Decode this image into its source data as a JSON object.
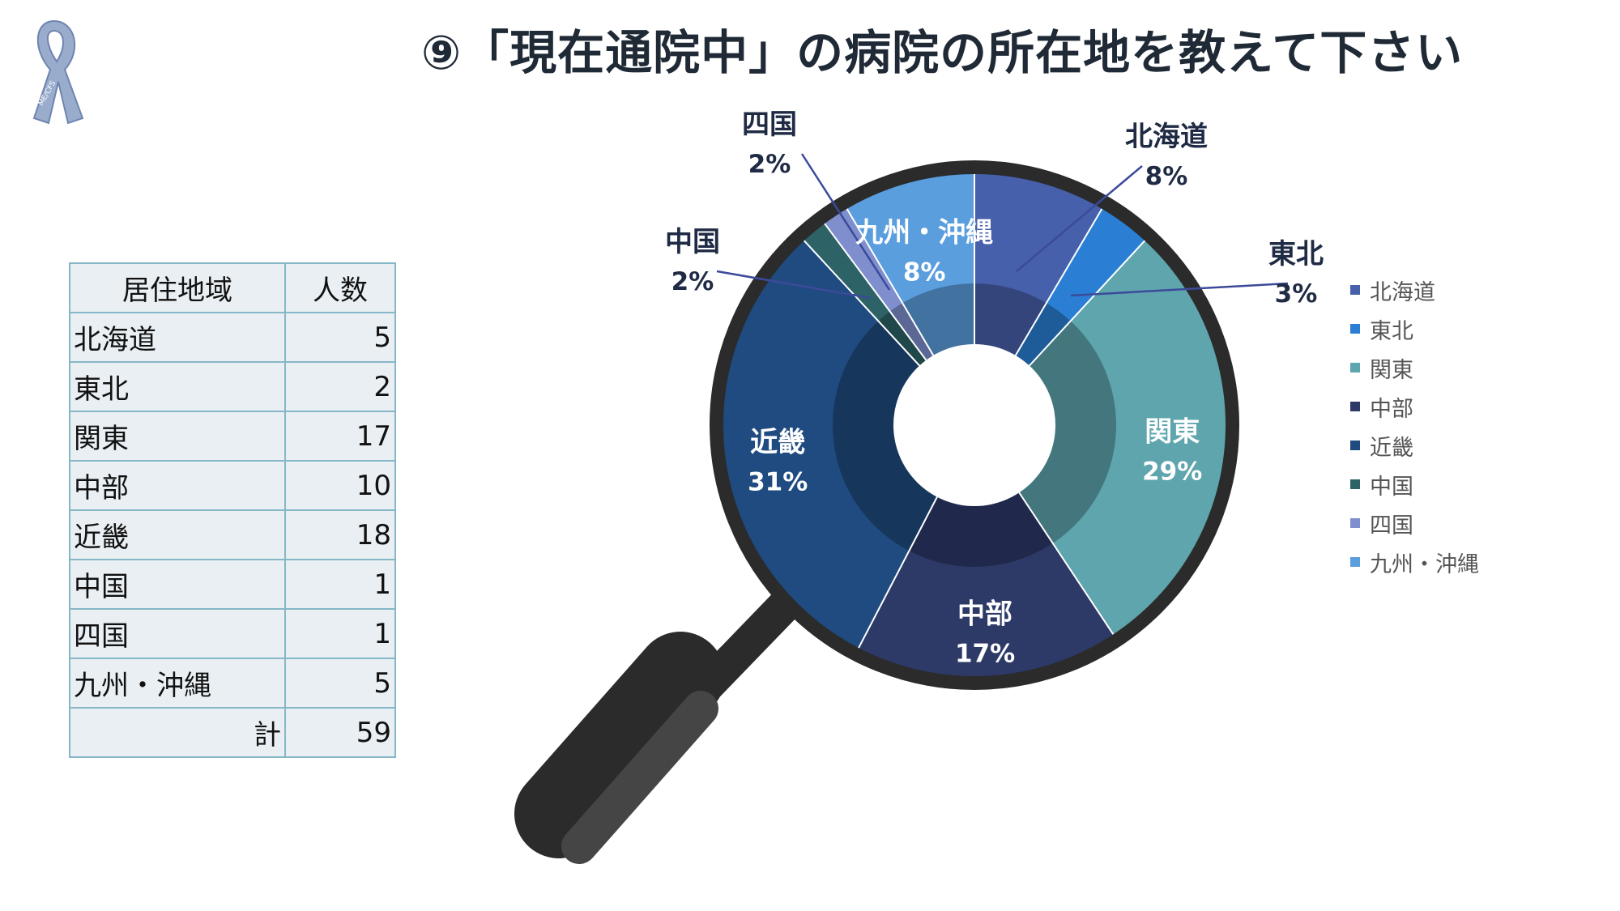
{
  "title": "⑨「現在通院中」の病院の所在地を教えて下さい",
  "logo_text": "ME/CFS",
  "table": {
    "headers": [
      "居住地域",
      "人数"
    ],
    "rows": [
      [
        "北海道",
        "5"
      ],
      [
        "東北",
        "2"
      ],
      [
        "関東",
        "17"
      ],
      [
        "中部",
        "10"
      ],
      [
        "近畿",
        "18"
      ],
      [
        "中国",
        "1"
      ],
      [
        "四国",
        "1"
      ],
      [
        "九州・沖縄",
        "5"
      ]
    ],
    "total_label": "計",
    "total_value": "59"
  },
  "chart_data": {
    "type": "pie",
    "variant": "donut",
    "categories": [
      "北海道",
      "東北",
      "関東",
      "中部",
      "近畿",
      "中国",
      "四国",
      "九州・沖縄"
    ],
    "values": [
      5,
      2,
      17,
      10,
      18,
      1,
      1,
      5
    ],
    "percent_labels": [
      "8%",
      "3%",
      "29%",
      "17%",
      "31%",
      "2%",
      "2%",
      "8%"
    ],
    "colors": [
      "#4760ab",
      "#2a7fd4",
      "#5ea5ad",
      "#2d3a68",
      "#1f4b80",
      "#2d6366",
      "#7f8fce",
      "#5a9ede"
    ],
    "legend_position": "right"
  }
}
